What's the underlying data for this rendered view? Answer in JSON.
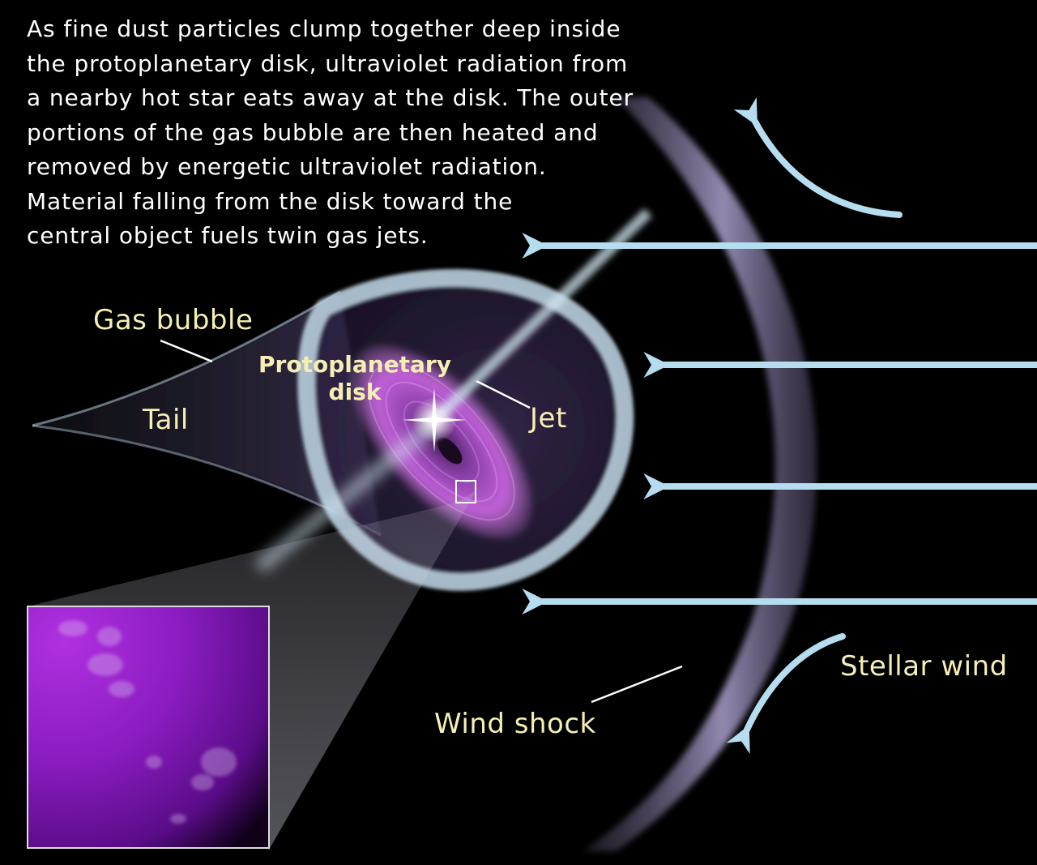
{
  "caption": {
    "lines": [
      "As fine dust particles clump together deep inside",
      "the protoplanetary disk, ultraviolet radiation from",
      "a nearby hot star eats away at the disk. The outer",
      "portions of the gas bubble are then heated and",
      "removed by energetic ultraviolet radiation.",
      "Material falling from the disk toward the",
      "central object fuels twin gas jets."
    ]
  },
  "labels": {
    "gas_bubble": "Gas bubble",
    "disk_line1": "Protoplanetary",
    "disk_line2": "disk",
    "jet": "Jet",
    "tail": "Tail",
    "stellar_wind": "Stellar wind",
    "wind_shock": "Wind shock"
  },
  "colors": {
    "background": "#000000",
    "caption_text": "#ffffff",
    "label_text": "#f6efb4",
    "arrow": "#b6dcef",
    "wind_shock": "#8c82aa",
    "gas_bubble": "#b8cddd",
    "disk": "#c45fd6",
    "inset": "#7a1fb0"
  }
}
